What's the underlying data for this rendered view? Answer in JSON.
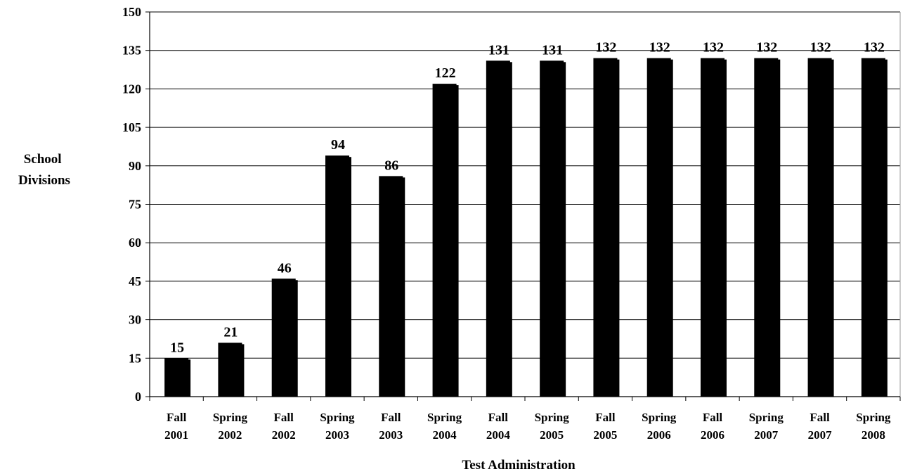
{
  "chart_data": {
    "type": "bar",
    "title": "",
    "xlabel": "Test Administration",
    "ylabel_lines": [
      "School",
      "Divisions"
    ],
    "ylim": [
      0,
      150
    ],
    "yticks": [
      0,
      15,
      30,
      45,
      60,
      75,
      90,
      105,
      120,
      135,
      150
    ],
    "grid": true,
    "legend": "none",
    "bar_color": "#000000",
    "categories": [
      [
        "Fall",
        "2001"
      ],
      [
        "Spring",
        "2002"
      ],
      [
        "Fall",
        "2002"
      ],
      [
        "Spring",
        "2003"
      ],
      [
        "Fall",
        "2003"
      ],
      [
        "Spring",
        "2004"
      ],
      [
        "Fall",
        "2004"
      ],
      [
        "Spring",
        "2005"
      ],
      [
        "Fall",
        "2005"
      ],
      [
        "Spring",
        "2006"
      ],
      [
        "Fall",
        "2006"
      ],
      [
        "Spring",
        "2007"
      ],
      [
        "Fall",
        "2007"
      ],
      [
        "Spring",
        "2008"
      ]
    ],
    "values": [
      15,
      21,
      46,
      94,
      86,
      122,
      131,
      131,
      132,
      132,
      132,
      132,
      132,
      132
    ]
  }
}
